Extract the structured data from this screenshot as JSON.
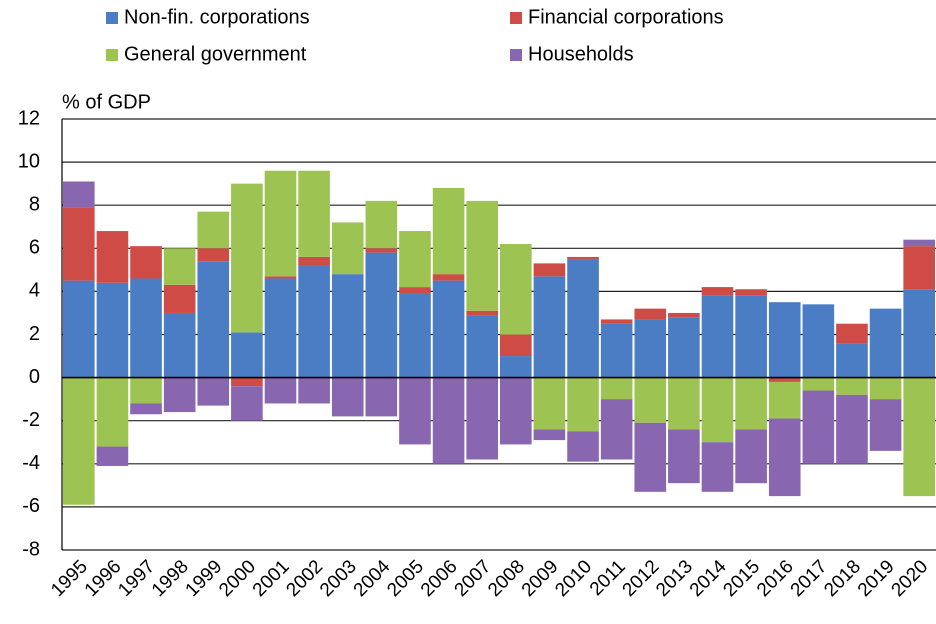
{
  "chart_data": {
    "type": "stacked_bar",
    "y_axis_label": "% of GDP",
    "categories": [
      "1995",
      "1996",
      "1997",
      "1998",
      "1999",
      "2000",
      "2001",
      "2002",
      "2003",
      "2004",
      "2005",
      "2006",
      "2007",
      "2008",
      "2009",
      "2010",
      "2011",
      "2012",
      "2013",
      "2014",
      "2015",
      "2016",
      "2017",
      "2018",
      "2019",
      "2020"
    ],
    "series": [
      {
        "name": "Non-fin. corporations",
        "color": "#4a7dc4",
        "values": [
          4.5,
          4.4,
          4.6,
          3.0,
          5.4,
          2.1,
          4.6,
          5.2,
          4.8,
          5.8,
          3.9,
          4.5,
          2.9,
          1.0,
          4.7,
          5.5,
          2.5,
          2.7,
          2.8,
          3.8,
          3.8,
          3.5,
          3.4,
          1.6,
          3.2,
          4.1
        ]
      },
      {
        "name": "Financial corporations",
        "color": "#cf4b46",
        "values": [
          3.4,
          2.4,
          1.5,
          1.3,
          0.6,
          -0.4,
          0.1,
          0.4,
          0,
          0.2,
          0.3,
          0.3,
          0.2,
          1.0,
          0.6,
          0.1,
          0.2,
          0.5,
          0.2,
          0.4,
          0.3,
          -0.2,
          0,
          0.9,
          0,
          2.0
        ]
      },
      {
        "name": "General government",
        "color": "#9dc353",
        "values": [
          -5.9,
          -3.2,
          -1.2,
          1.7,
          1.7,
          6.9,
          4.9,
          4.0,
          2.4,
          2.2,
          2.6,
          4.0,
          5.1,
          4.2,
          -2.4,
          -2.5,
          -1.0,
          -2.1,
          -2.4,
          -3.0,
          -2.4,
          -1.7,
          -0.6,
          -0.8,
          -1.0,
          -5.5
        ]
      },
      {
        "name": "Households",
        "color": "#8866b0",
        "values": [
          1.2,
          -0.9,
          -0.5,
          -1.6,
          -1.3,
          -1.6,
          -1.2,
          -1.2,
          -1.8,
          -1.8,
          -3.1,
          -4.0,
          -3.8,
          -3.1,
          -0.5,
          -1.4,
          -2.8,
          -3.2,
          -2.5,
          -2.3,
          -2.5,
          -3.6,
          -3.4,
          -3.2,
          -2.4,
          0.3
        ]
      }
    ],
    "ylim": [
      -8,
      12
    ],
    "yticks": [
      -8,
      -6,
      -4,
      -2,
      0,
      2,
      4,
      6,
      8,
      10,
      12
    ],
    "grid": true
  }
}
